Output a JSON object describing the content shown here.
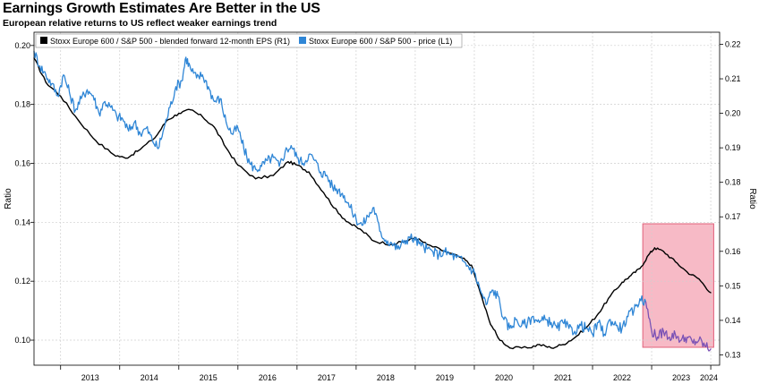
{
  "header": {
    "title": "Earnings Growth Estimates Are Better in the US",
    "subtitle": "European relative returns to US reflect weaker earnings trend"
  },
  "colors": {
    "eps_series": "#000000",
    "price_series": "#2f86d6",
    "highlight_box": "#f4a3b3",
    "highlight_border": "#e0607a",
    "highlighted_price": "#7b52b5",
    "grid": "#cfcfcf"
  },
  "chart_data": {
    "type": "line",
    "title": "Earnings Growth Estimates Are Better in the US",
    "subtitle": "European relative returns to US reflect weaker earnings trend",
    "legend_position": "top-left",
    "grid": true,
    "x_ticks": [
      "2013",
      "2014",
      "2015",
      "2016",
      "2017",
      "2018",
      "2019",
      "2020",
      "2021",
      "2022",
      "2023",
      "2024"
    ],
    "xlim": [
      2012.55,
      2024.15
    ],
    "left_axis": {
      "label": "Ratio",
      "ticks": [
        "0.10",
        "0.12",
        "0.14",
        "0.16",
        "0.18",
        "0.20"
      ],
      "ylim": [
        0.0915,
        0.2045
      ]
    },
    "right_axis": {
      "label": "Ratio",
      "ticks": [
        "0.13",
        "0.14",
        "0.15",
        "0.16",
        "0.17",
        "0.18",
        "0.19",
        "0.20",
        "0.21",
        "0.22"
      ],
      "ylim": [
        0.127,
        0.2235
      ]
    },
    "highlight": {
      "x_start": 2022.85,
      "x_end": 2024.05,
      "label": ""
    },
    "series": [
      {
        "name": "Stoxx Europe 600 / S&P 500 - blended forward 12-month EPS (R1)",
        "axis": "right",
        "color": "#000000",
        "points": [
          [
            2012.55,
            0.216
          ],
          [
            2012.75,
            0.209
          ],
          [
            2013.0,
            0.205
          ],
          [
            2013.3,
            0.198
          ],
          [
            2013.6,
            0.192
          ],
          [
            2013.9,
            0.188
          ],
          [
            2014.1,
            0.187
          ],
          [
            2014.3,
            0.189
          ],
          [
            2014.6,
            0.193
          ],
          [
            2014.8,
            0.198
          ],
          [
            2015.0,
            0.2
          ],
          [
            2015.2,
            0.201
          ],
          [
            2015.4,
            0.199
          ],
          [
            2015.6,
            0.196
          ],
          [
            2015.8,
            0.19
          ],
          [
            2016.0,
            0.185
          ],
          [
            2016.3,
            0.181
          ],
          [
            2016.6,
            0.182
          ],
          [
            2016.85,
            0.186
          ],
          [
            2017.0,
            0.185
          ],
          [
            2017.2,
            0.183
          ],
          [
            2017.45,
            0.177
          ],
          [
            2017.7,
            0.171
          ],
          [
            2017.9,
            0.168
          ],
          [
            2018.1,
            0.166
          ],
          [
            2018.3,
            0.163
          ],
          [
            2018.6,
            0.162
          ],
          [
            2018.85,
            0.163
          ],
          [
            2019.0,
            0.164
          ],
          [
            2019.2,
            0.162
          ],
          [
            2019.5,
            0.16
          ],
          [
            2019.8,
            0.158
          ],
          [
            2019.95,
            0.156
          ],
          [
            2020.1,
            0.148
          ],
          [
            2020.25,
            0.14
          ],
          [
            2020.4,
            0.135
          ],
          [
            2020.6,
            0.132
          ],
          [
            2020.9,
            0.132
          ],
          [
            2021.1,
            0.133
          ],
          [
            2021.3,
            0.132
          ],
          [
            2021.5,
            0.133
          ],
          [
            2021.7,
            0.135
          ],
          [
            2021.9,
            0.138
          ],
          [
            2022.1,
            0.142
          ],
          [
            2022.3,
            0.147
          ],
          [
            2022.5,
            0.151
          ],
          [
            2022.65,
            0.153
          ],
          [
            2022.8,
            0.155
          ],
          [
            2022.95,
            0.159
          ],
          [
            2023.05,
            0.161
          ],
          [
            2023.2,
            0.16
          ],
          [
            2023.4,
            0.157
          ],
          [
            2023.6,
            0.154
          ],
          [
            2023.8,
            0.152
          ],
          [
            2024.0,
            0.148
          ]
        ]
      },
      {
        "name": "Stoxx Europe 600 / S&P 500 - price (L1)",
        "axis": "left",
        "color": "#2f86d6",
        "points": [
          [
            2012.55,
            0.198
          ],
          [
            2012.65,
            0.193
          ],
          [
            2012.75,
            0.19
          ],
          [
            2012.85,
            0.187
          ],
          [
            2012.95,
            0.183
          ],
          [
            2013.05,
            0.19
          ],
          [
            2013.15,
            0.184
          ],
          [
            2013.25,
            0.178
          ],
          [
            2013.35,
            0.182
          ],
          [
            2013.45,
            0.185
          ],
          [
            2013.55,
            0.183
          ],
          [
            2013.65,
            0.177
          ],
          [
            2013.75,
            0.181
          ],
          [
            2013.85,
            0.179
          ],
          [
            2013.95,
            0.176
          ],
          [
            2014.05,
            0.175
          ],
          [
            2014.15,
            0.171
          ],
          [
            2014.25,
            0.174
          ],
          [
            2014.35,
            0.17
          ],
          [
            2014.45,
            0.172
          ],
          [
            2014.55,
            0.168
          ],
          [
            2014.65,
            0.165
          ],
          [
            2014.75,
            0.172
          ],
          [
            2014.85,
            0.179
          ],
          [
            2014.95,
            0.186
          ],
          [
            2015.05,
            0.188
          ],
          [
            2015.12,
            0.196
          ],
          [
            2015.2,
            0.192
          ],
          [
            2015.3,
            0.189
          ],
          [
            2015.4,
            0.19
          ],
          [
            2015.5,
            0.186
          ],
          [
            2015.6,
            0.181
          ],
          [
            2015.7,
            0.182
          ],
          [
            2015.8,
            0.174
          ],
          [
            2015.9,
            0.17
          ],
          [
            2016.0,
            0.172
          ],
          [
            2016.1,
            0.165
          ],
          [
            2016.2,
            0.16
          ],
          [
            2016.3,
            0.158
          ],
          [
            2016.4,
            0.159
          ],
          [
            2016.5,
            0.161
          ],
          [
            2016.6,
            0.162
          ],
          [
            2016.7,
            0.159
          ],
          [
            2016.8,
            0.164
          ],
          [
            2016.9,
            0.166
          ],
          [
            2017.0,
            0.162
          ],
          [
            2017.1,
            0.16
          ],
          [
            2017.2,
            0.163
          ],
          [
            2017.3,
            0.161
          ],
          [
            2017.4,
            0.157
          ],
          [
            2017.5,
            0.156
          ],
          [
            2017.6,
            0.152
          ],
          [
            2017.7,
            0.151
          ],
          [
            2017.8,
            0.149
          ],
          [
            2017.9,
            0.145
          ],
          [
            2018.0,
            0.141
          ],
          [
            2018.1,
            0.139
          ],
          [
            2018.2,
            0.142
          ],
          [
            2018.3,
            0.145
          ],
          [
            2018.4,
            0.137
          ],
          [
            2018.5,
            0.134
          ],
          [
            2018.6,
            0.133
          ],
          [
            2018.7,
            0.131
          ],
          [
            2018.8,
            0.133
          ],
          [
            2018.9,
            0.135
          ],
          [
            2019.0,
            0.134
          ],
          [
            2019.1,
            0.132
          ],
          [
            2019.2,
            0.131
          ],
          [
            2019.3,
            0.13
          ],
          [
            2019.4,
            0.129
          ],
          [
            2019.5,
            0.13
          ],
          [
            2019.6,
            0.129
          ],
          [
            2019.7,
            0.128
          ],
          [
            2019.8,
            0.127
          ],
          [
            2019.9,
            0.125
          ],
          [
            2020.0,
            0.123
          ],
          [
            2020.1,
            0.117
          ],
          [
            2020.2,
            0.112
          ],
          [
            2020.3,
            0.117
          ],
          [
            2020.4,
            0.115
          ],
          [
            2020.5,
            0.107
          ],
          [
            2020.6,
            0.104
          ],
          [
            2020.7,
            0.107
          ],
          [
            2020.8,
            0.105
          ],
          [
            2020.9,
            0.106
          ],
          [
            2021.0,
            0.108
          ],
          [
            2021.1,
            0.106
          ],
          [
            2021.2,
            0.107
          ],
          [
            2021.3,
            0.106
          ],
          [
            2021.4,
            0.104
          ],
          [
            2021.5,
            0.106
          ],
          [
            2021.6,
            0.104
          ],
          [
            2021.7,
            0.103
          ],
          [
            2021.8,
            0.105
          ],
          [
            2021.9,
            0.104
          ],
          [
            2022.0,
            0.102
          ],
          [
            2022.1,
            0.106
          ],
          [
            2022.2,
            0.102
          ],
          [
            2022.3,
            0.107
          ],
          [
            2022.4,
            0.105
          ],
          [
            2022.5,
            0.104
          ],
          [
            2022.6,
            0.108
          ],
          [
            2022.7,
            0.11
          ],
          [
            2022.8,
            0.114
          ],
          [
            2022.9,
            0.113
          ]
        ]
      },
      {
        "name": "",
        "axis": "left",
        "color": "#7b52b5",
        "points": [
          [
            2022.9,
            0.113
          ],
          [
            2023.0,
            0.103
          ],
          [
            2023.1,
            0.101
          ],
          [
            2023.2,
            0.103
          ],
          [
            2023.3,
            0.101
          ],
          [
            2023.4,
            0.102
          ],
          [
            2023.5,
            0.1
          ],
          [
            2023.6,
            0.101
          ],
          [
            2023.7,
            0.099
          ],
          [
            2023.8,
            0.1
          ],
          [
            2023.9,
            0.098
          ],
          [
            2024.0,
            0.097
          ]
        ]
      }
    ]
  }
}
